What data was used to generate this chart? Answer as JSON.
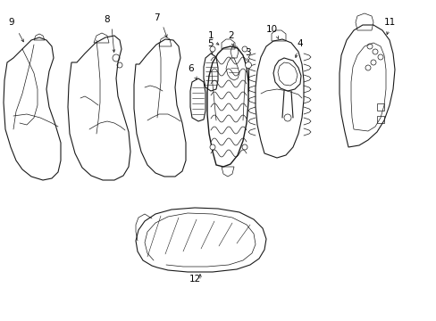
{
  "background_color": "#ffffff",
  "line_color": "#1a1a1a",
  "label_color": "#000000",
  "figsize": [
    4.89,
    3.6
  ],
  "dpi": 100,
  "lw_main": 0.8,
  "lw_thin": 0.5,
  "label_fontsize": 7.5,
  "xlim": [
    0,
    489
  ],
  "ylim": [
    0,
    360
  ]
}
